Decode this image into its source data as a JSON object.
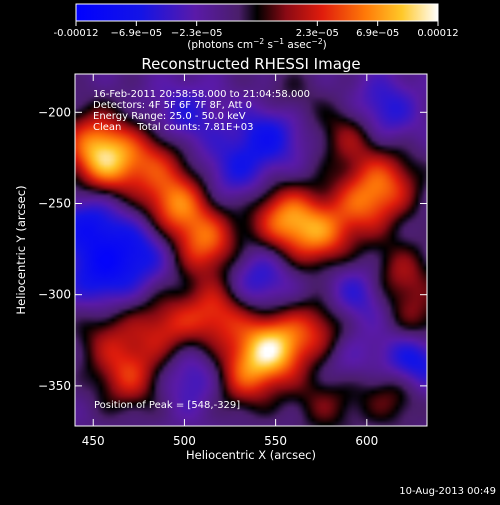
{
  "colorbar": {
    "tick_labels": [
      "-0.00012",
      "−6.9e−05",
      "−2.3e−05",
      "2.3e−05",
      "6.9e−05",
      "0.00012"
    ],
    "unit_label_main": "(photons cm",
    "unit_sup1": "−2",
    "unit_mid": " s",
    "unit_sup2": "−1",
    "unit_end": " asec",
    "unit_sup3": "−2",
    "unit_close": ")",
    "range": [
      -0.00012,
      0.00012
    ]
  },
  "chart_data": {
    "type": "heatmap",
    "title": "Reconstructed RHESSI Image",
    "xlabel": "Heliocentric X (arcsec)",
    "ylabel": "Heliocentric Y (arcsec)",
    "x_ticks": [
      450,
      500,
      550,
      600
    ],
    "y_ticks": [
      -200,
      -250,
      -300,
      -350
    ],
    "xlim": [
      440,
      633
    ],
    "ylim": [
      -372,
      -179
    ],
    "annotations": [
      "16-Feb-2011 20:58:58.000 to 21:04:58.000",
      "Detectors: 4F 5F 6F 7F 8F, Att 0",
      "Energy Range: 25.0 - 50.0 keV",
      "Clean     Total counts: 7.81E+03"
    ],
    "peak_label": "Position of Peak = [548,-329]",
    "peak": [
      548,
      -329
    ],
    "blobs": [
      {
        "x": 548,
        "y": -329,
        "v": 1.0
      },
      {
        "x": 575,
        "y": -320,
        "v": 0.55
      },
      {
        "x": 532,
        "y": -345,
        "v": 0.55
      },
      {
        "x": 518,
        "y": -310,
        "v": 0.6
      },
      {
        "x": 490,
        "y": -318,
        "v": 0.5
      },
      {
        "x": 470,
        "y": -345,
        "v": 0.55
      },
      {
        "x": 458,
        "y": -322,
        "v": 0.35
      },
      {
        "x": 495,
        "y": -250,
        "v": 0.75
      },
      {
        "x": 512,
        "y": -272,
        "v": 0.7
      },
      {
        "x": 483,
        "y": -225,
        "v": 0.45
      },
      {
        "x": 458,
        "y": -228,
        "v": 0.75
      },
      {
        "x": 450,
        "y": -215,
        "v": 0.5
      },
      {
        "x": 555,
        "y": -258,
        "v": 0.75
      },
      {
        "x": 575,
        "y": -268,
        "v": 0.65
      },
      {
        "x": 598,
        "y": -250,
        "v": 0.55
      },
      {
        "x": 612,
        "y": -238,
        "v": 0.5
      },
      {
        "x": 592,
        "y": -212,
        "v": 0.45
      },
      {
        "x": 555,
        "y": -196,
        "v": 0.3
      },
      {
        "x": 618,
        "y": -290,
        "v": 0.45
      },
      {
        "x": 628,
        "y": -320,
        "v": 0.5
      },
      {
        "x": 615,
        "y": -352,
        "v": 0.45
      },
      {
        "x": 578,
        "y": -358,
        "v": 0.35
      },
      {
        "x": 548,
        "y": -210,
        "v": -0.55
      },
      {
        "x": 528,
        "y": -232,
        "v": -0.35
      },
      {
        "x": 476,
        "y": -276,
        "v": -0.45
      },
      {
        "x": 448,
        "y": -262,
        "v": -0.5
      },
      {
        "x": 540,
        "y": -292,
        "v": -0.4
      },
      {
        "x": 595,
        "y": -300,
        "v": -0.4
      },
      {
        "x": 625,
        "y": -335,
        "v": -0.8
      },
      {
        "x": 608,
        "y": -200,
        "v": -0.45
      },
      {
        "x": 500,
        "y": -203,
        "v": -0.35
      },
      {
        "x": 454,
        "y": -290,
        "v": -0.5
      },
      {
        "x": 505,
        "y": -345,
        "v": -0.35
      },
      {
        "x": 585,
        "y": -335,
        "v": -0.3
      }
    ]
  },
  "footer": {
    "date_label": "10-Aug-2013 00:49"
  }
}
